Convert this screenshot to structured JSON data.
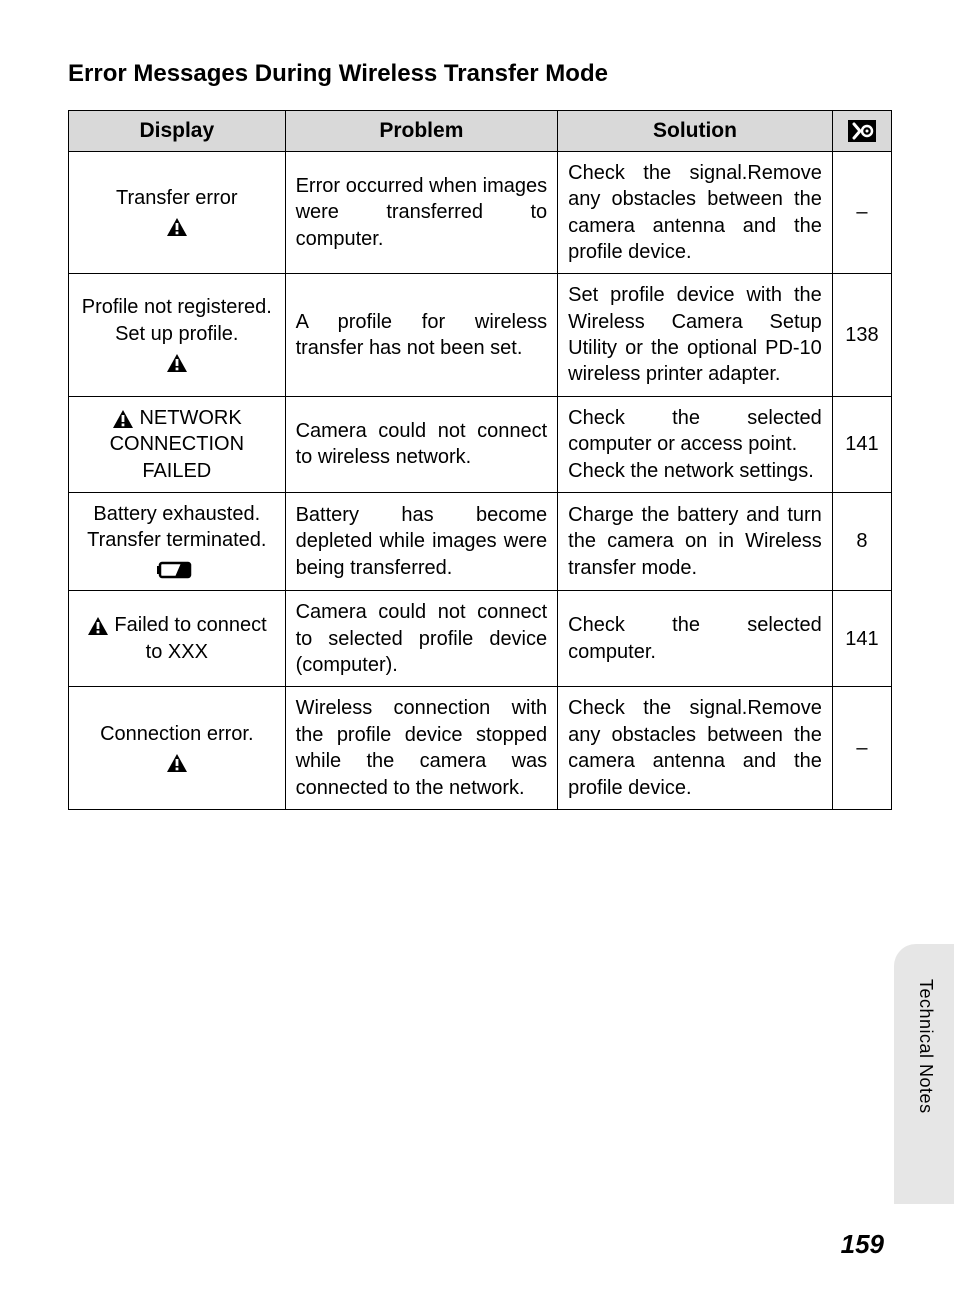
{
  "section_title": "Error Messages During Wireless Transfer Mode",
  "columns": {
    "display": "Display",
    "problem": "Problem",
    "solution": "Solution"
  },
  "rows": [
    {
      "display_text": "Transfer error",
      "display_icon": "warning",
      "problem": "Error occurred when images were transferred to computer.",
      "solution": "Check the signal.Remove any obstacles between the camera antenna and the profile device.",
      "ref": "–"
    },
    {
      "display_text": "Profile not registered. Set up profile.",
      "display_icon": "warning",
      "problem": "A profile for wireless transfer has not been set.",
      "solution": "Set profile device with the Wireless Camera Setup Utility or the optional PD-10 wireless printer adapter.",
      "ref": "138"
    },
    {
      "display_pre_icon": "warning",
      "display_text": "NETWORK CONNECTION FAILED",
      "problem": "Camera could not connect to wireless network.",
      "solution": "Check the selected computer or access point.\nCheck the network settings.",
      "ref": "141"
    },
    {
      "display_text": "Battery exhausted. Transfer terminated.",
      "display_icon": "battery",
      "problem": "Battery has become depleted while images were being transferred.",
      "solution": "Charge the battery and turn the camera on in Wireless transfer mode.",
      "ref": "8"
    },
    {
      "display_pre_icon": "warning",
      "display_text": "Failed to connect to XXX",
      "problem": "Camera could not connect to selected profile device (computer).",
      "solution": "Check the selected computer.",
      "ref": "141"
    },
    {
      "display_text": "Connection error.",
      "display_icon": "warning",
      "problem": "Wireless connection with the profile device stopped while the camera was connected to the network.",
      "solution": "Check the signal.Remove any obstacles between the camera antenna and the profile device.",
      "ref": "–"
    }
  ],
  "side_label": "Technical Notes",
  "page_number": "159",
  "colors": {
    "header_bg": "#d9d9d9",
    "tab_bg": "#e6e6e6",
    "text": "#000000",
    "icon_fill": "#000000"
  }
}
